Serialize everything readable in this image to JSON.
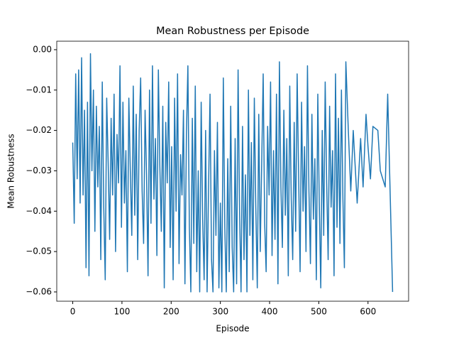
{
  "chart_data": {
    "type": "line",
    "title": "Mean Robustness per Episode",
    "xlabel": "Episode",
    "ylabel": "Mean Robustness",
    "x": [
      0,
      3,
      6,
      9,
      12,
      15,
      18,
      21,
      24,
      27,
      30,
      33,
      36,
      39,
      42,
      45,
      48,
      51,
      54,
      57,
      60,
      63,
      66,
      69,
      72,
      75,
      78,
      81,
      84,
      87,
      90,
      93,
      96,
      99,
      102,
      105,
      108,
      111,
      114,
      117,
      120,
      123,
      126,
      129,
      132,
      135,
      138,
      141,
      144,
      147,
      150,
      153,
      156,
      159,
      162,
      165,
      168,
      171,
      174,
      177,
      180,
      183,
      186,
      189,
      192,
      195,
      198,
      201,
      204,
      207,
      210,
      213,
      216,
      219,
      222,
      225,
      228,
      231,
      234,
      237,
      240,
      243,
      246,
      249,
      252,
      255,
      258,
      261,
      264,
      267,
      270,
      273,
      276,
      279,
      282,
      285,
      288,
      291,
      294,
      297,
      300,
      303,
      306,
      309,
      312,
      315,
      318,
      321,
      324,
      327,
      330,
      333,
      336,
      339,
      342,
      345,
      348,
      351,
      354,
      357,
      360,
      363,
      366,
      369,
      372,
      375,
      378,
      381,
      384,
      387,
      390,
      393,
      396,
      399,
      402,
      405,
      408,
      411,
      414,
      417,
      420,
      423,
      426,
      429,
      432,
      435,
      438,
      441,
      444,
      447,
      450,
      453,
      456,
      459,
      462,
      465,
      468,
      471,
      474,
      477,
      480,
      483,
      486,
      489,
      492,
      495,
      498,
      501,
      504,
      507,
      510,
      513,
      516,
      519,
      522,
      525,
      528,
      531,
      534,
      537,
      540,
      543,
      546,
      549,
      552,
      555,
      560,
      565,
      570,
      578,
      585,
      590,
      596,
      600,
      605,
      610,
      620,
      625,
      635,
      640,
      650
    ],
    "series": [
      {
        "name": "Mean Robustness",
        "color": "#1f77b4",
        "values": [
          -0.023,
          -0.043,
          -0.006,
          -0.032,
          -0.005,
          -0.038,
          -0.002,
          -0.036,
          -0.015,
          -0.054,
          -0.013,
          -0.056,
          -0.001,
          -0.03,
          -0.01,
          -0.045,
          -0.014,
          -0.034,
          -0.019,
          -0.052,
          -0.008,
          -0.039,
          -0.057,
          -0.012,
          -0.028,
          -0.047,
          -0.017,
          -0.036,
          -0.011,
          -0.05,
          -0.021,
          -0.033,
          -0.004,
          -0.044,
          -0.013,
          -0.038,
          -0.025,
          -0.055,
          -0.012,
          -0.03,
          -0.046,
          -0.009,
          -0.041,
          -0.016,
          -0.052,
          -0.02,
          -0.007,
          -0.035,
          -0.048,
          -0.015,
          -0.031,
          -0.056,
          -0.01,
          -0.043,
          -0.004,
          -0.037,
          -0.022,
          -0.051,
          -0.005,
          -0.029,
          -0.045,
          -0.014,
          -0.059,
          -0.018,
          -0.033,
          -0.008,
          -0.049,
          -0.024,
          -0.057,
          -0.012,
          -0.04,
          -0.006,
          -0.053,
          -0.026,
          -0.036,
          -0.015,
          -0.058,
          -0.021,
          -0.004,
          -0.044,
          -0.06,
          -0.017,
          -0.048,
          -0.009,
          -0.055,
          -0.03,
          -0.06,
          -0.013,
          -0.042,
          -0.057,
          -0.02,
          -0.06,
          -0.034,
          -0.011,
          -0.052,
          -0.06,
          -0.025,
          -0.046,
          -0.018,
          -0.059,
          -0.038,
          -0.06,
          -0.007,
          -0.044,
          -0.06,
          -0.027,
          -0.055,
          -0.014,
          -0.049,
          -0.06,
          -0.022,
          -0.058,
          -0.005,
          -0.04,
          -0.06,
          -0.019,
          -0.052,
          -0.031,
          -0.06,
          -0.01,
          -0.046,
          -0.023,
          -0.057,
          -0.012,
          -0.039,
          -0.059,
          -0.016,
          -0.05,
          -0.028,
          -0.006,
          -0.043,
          -0.055,
          -0.019,
          -0.036,
          -0.008,
          -0.051,
          -0.025,
          -0.047,
          -0.011,
          -0.058,
          -0.003,
          -0.034,
          -0.049,
          -0.015,
          -0.041,
          -0.022,
          -0.056,
          -0.009,
          -0.037,
          -0.052,
          -0.018,
          -0.045,
          -0.006,
          -0.031,
          -0.055,
          -0.013,
          -0.04,
          -0.024,
          -0.05,
          -0.004,
          -0.035,
          -0.053,
          -0.016,
          -0.042,
          -0.027,
          -0.057,
          -0.011,
          -0.038,
          -0.059,
          -0.02,
          -0.046,
          -0.008,
          -0.033,
          -0.052,
          -0.014,
          -0.039,
          -0.025,
          -0.056,
          -0.006,
          -0.044,
          -0.017,
          -0.048,
          -0.01,
          -0.037,
          -0.054,
          -0.003,
          -0.02,
          -0.035,
          -0.02,
          -0.038,
          -0.022,
          -0.034,
          -0.016,
          -0.024,
          -0.032,
          -0.019,
          -0.02,
          -0.03,
          -0.034,
          -0.011,
          -0.06
        ]
      }
    ],
    "xlim": [
      -32.5,
      682.5
    ],
    "ylim": [
      -0.0623,
      0.0021
    ],
    "xticks": [
      0,
      100,
      200,
      300,
      400,
      500,
      600
    ],
    "yticks": [
      {
        "value": -0.06,
        "label": "−0.06"
      },
      {
        "value": -0.05,
        "label": "−0.05"
      },
      {
        "value": -0.04,
        "label": "−0.04"
      },
      {
        "value": -0.03,
        "label": "−0.03"
      },
      {
        "value": -0.02,
        "label": "−0.02"
      },
      {
        "value": -0.01,
        "label": "−0.01"
      },
      {
        "value": 0,
        "label": "0.00"
      }
    ]
  }
}
